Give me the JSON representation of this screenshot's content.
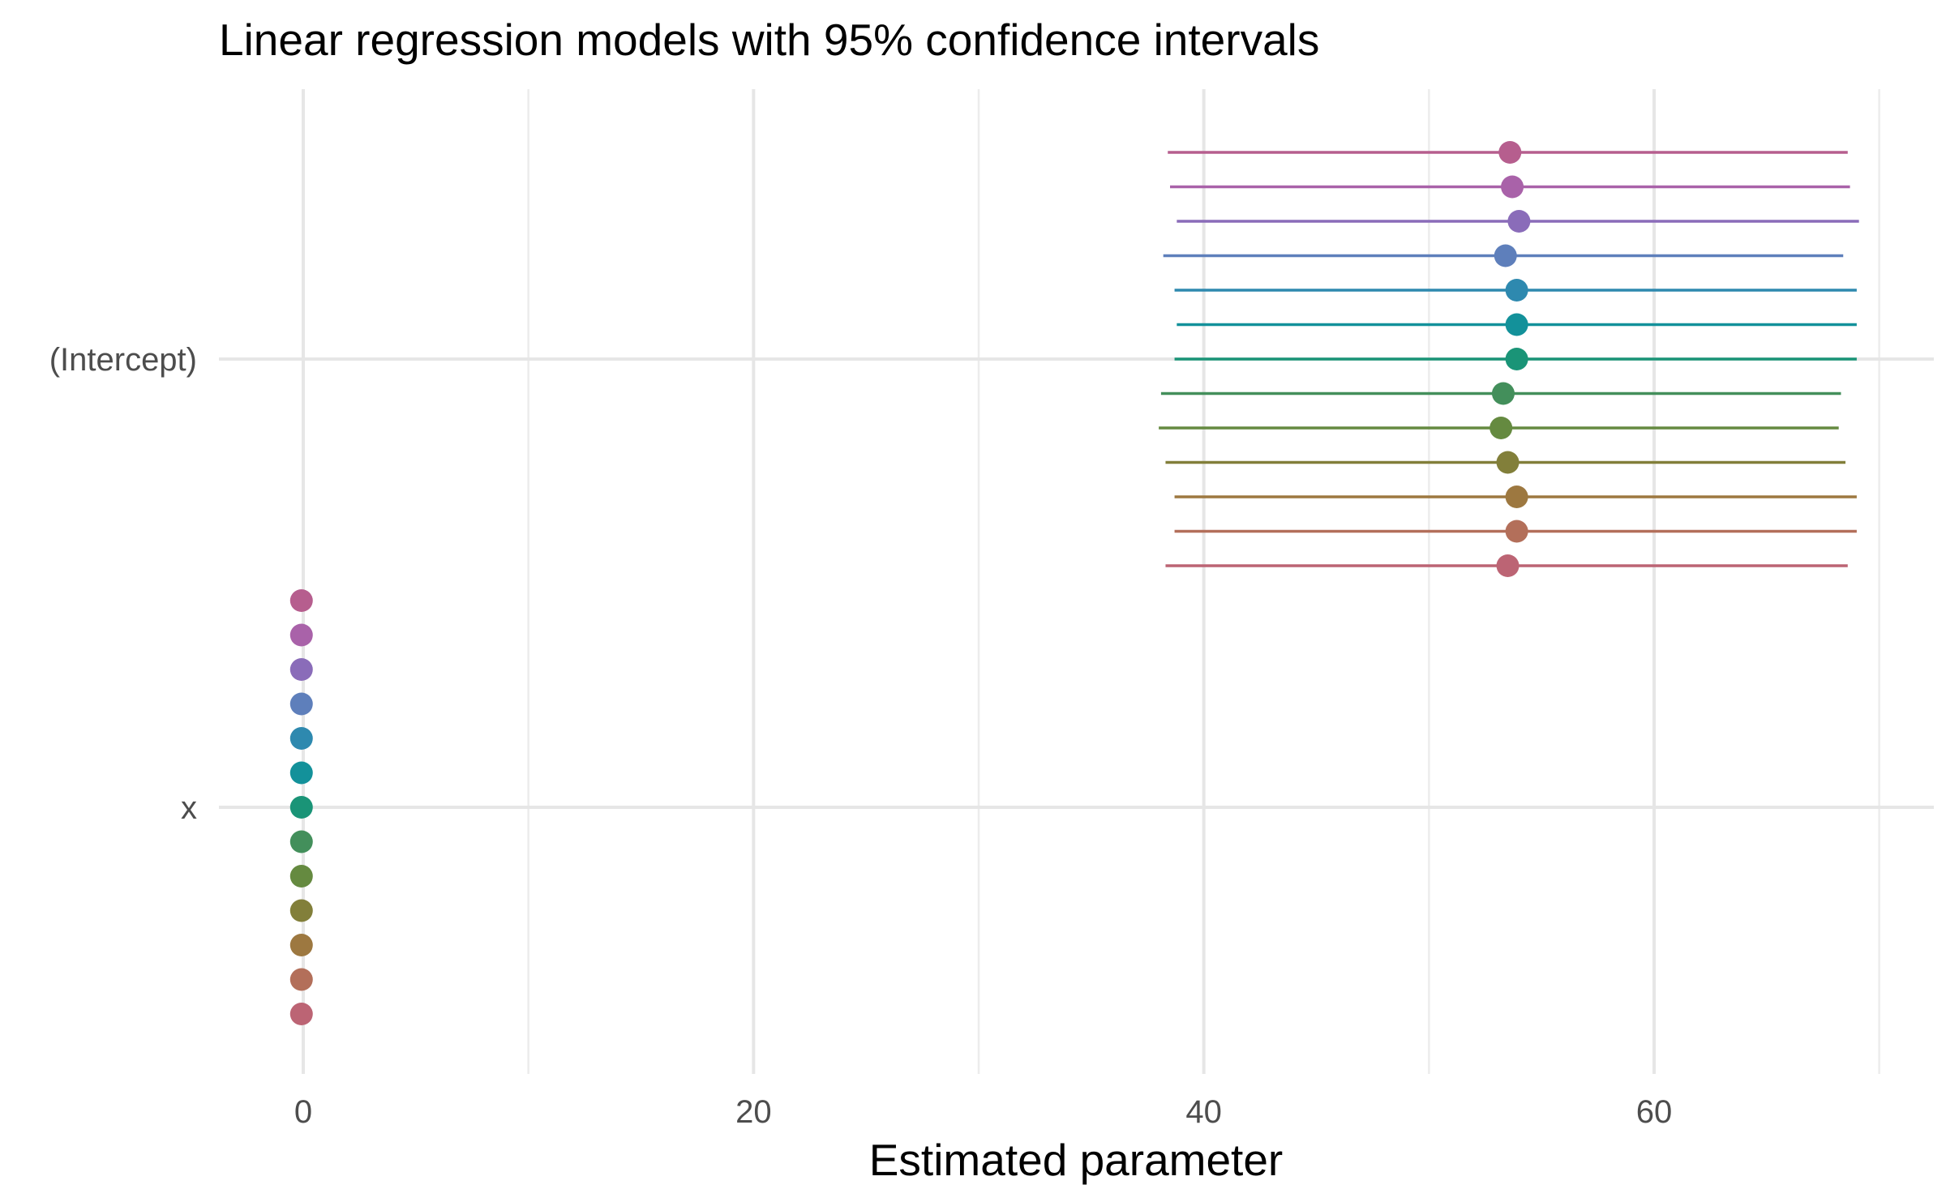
{
  "chart_data": {
    "type": "scatter",
    "title": "Linear regression models with 95% confidence intervals",
    "xlabel": "Estimated parameter",
    "ylabel": "",
    "xlim": [
      -3.8,
      70.6
    ],
    "x_ticks": [
      0,
      20,
      40,
      60
    ],
    "y_categories": [
      "(Intercept)",
      "x"
    ],
    "grid": true,
    "legend": "none",
    "series": [
      {
        "color": "#B65E8E",
        "points": [
          {
            "term": "(Intercept)",
            "estimate": 53.6,
            "low": 38.4,
            "high": 68.6
          },
          {
            "term": "x",
            "estimate": -0.08
          }
        ]
      },
      {
        "color": "#A962A9",
        "points": [
          {
            "term": "(Intercept)",
            "estimate": 53.7,
            "low": 38.5,
            "high": 68.7
          },
          {
            "term": "x",
            "estimate": -0.08
          }
        ]
      },
      {
        "color": "#8A6CB9",
        "points": [
          {
            "term": "(Intercept)",
            "estimate": 54.0,
            "low": 38.8,
            "high": 69.1
          },
          {
            "term": "x",
            "estimate": -0.08
          }
        ]
      },
      {
        "color": "#5E7FBB",
        "points": [
          {
            "term": "(Intercept)",
            "estimate": 53.4,
            "low": 38.2,
            "high": 68.4
          },
          {
            "term": "x",
            "estimate": -0.08
          }
        ]
      },
      {
        "color": "#2E89AF",
        "points": [
          {
            "term": "(Intercept)",
            "estimate": 53.9,
            "low": 38.7,
            "high": 69.0
          },
          {
            "term": "x",
            "estimate": -0.08
          }
        ]
      },
      {
        "color": "#13919A",
        "points": [
          {
            "term": "(Intercept)",
            "estimate": 53.9,
            "low": 38.8,
            "high": 69.0
          },
          {
            "term": "x",
            "estimate": -0.08
          }
        ]
      },
      {
        "color": "#1A9477",
        "points": [
          {
            "term": "(Intercept)",
            "estimate": 53.9,
            "low": 38.7,
            "high": 69.0
          },
          {
            "term": "x",
            "estimate": -0.08
          }
        ]
      },
      {
        "color": "#438F5B",
        "points": [
          {
            "term": "(Intercept)",
            "estimate": 53.3,
            "low": 38.1,
            "high": 68.3
          },
          {
            "term": "x",
            "estimate": -0.08
          }
        ]
      },
      {
        "color": "#658A40",
        "points": [
          {
            "term": "(Intercept)",
            "estimate": 53.2,
            "low": 38.0,
            "high": 68.2
          },
          {
            "term": "x",
            "estimate": -0.08
          }
        ]
      },
      {
        "color": "#827F3A",
        "points": [
          {
            "term": "(Intercept)",
            "estimate": 53.5,
            "low": 38.3,
            "high": 68.5
          },
          {
            "term": "x",
            "estimate": -0.08
          }
        ]
      },
      {
        "color": "#9D7840",
        "points": [
          {
            "term": "(Intercept)",
            "estimate": 53.9,
            "low": 38.7,
            "high": 69.0
          },
          {
            "term": "x",
            "estimate": -0.08
          }
        ]
      },
      {
        "color": "#B36F5A",
        "points": [
          {
            "term": "(Intercept)",
            "estimate": 53.9,
            "low": 38.7,
            "high": 69.0
          },
          {
            "term": "x",
            "estimate": -0.08
          }
        ]
      },
      {
        "color": "#BC6474",
        "points": [
          {
            "term": "(Intercept)",
            "estimate": 53.5,
            "low": 38.3,
            "high": 68.6
          },
          {
            "term": "x",
            "estimate": -0.08
          }
        ]
      }
    ]
  }
}
